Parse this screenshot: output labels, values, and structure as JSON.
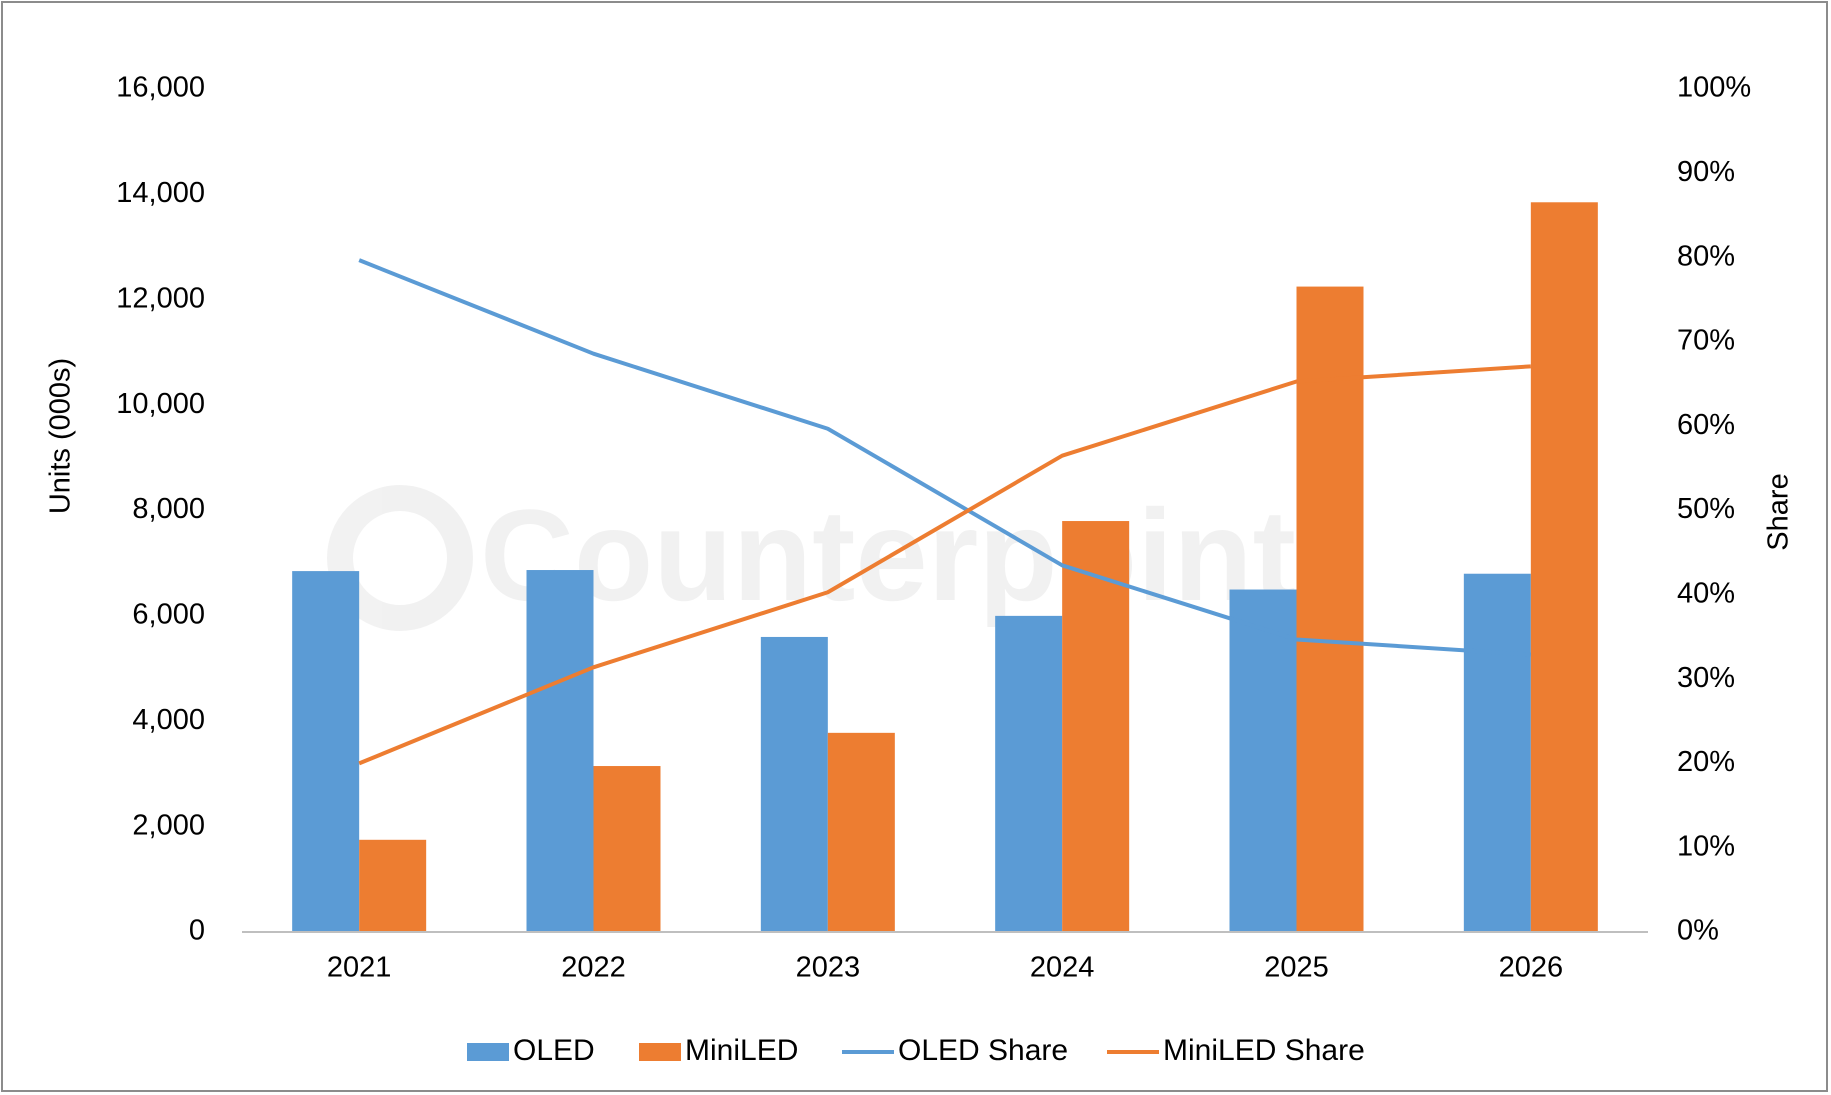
{
  "chart_data": {
    "type": "bar",
    "categories": [
      "2021",
      "2022",
      "2023",
      "2024",
      "2025",
      "2026"
    ],
    "series": [
      {
        "name": "OLED",
        "kind": "bar",
        "axis": "left",
        "color": "#5b9bd5",
        "values": [
          6850,
          6870,
          5600,
          6000,
          6500,
          6800
        ]
      },
      {
        "name": "MiniLED",
        "kind": "bar",
        "axis": "left",
        "color": "#ed7d31",
        "values": [
          1750,
          3150,
          3780,
          7800,
          12250,
          13850
        ]
      },
      {
        "name": "OLED Share",
        "kind": "line",
        "axis": "right",
        "color": "#5b9bd5",
        "values": [
          0.797,
          0.686,
          0.597,
          0.435,
          0.347,
          0.329
        ]
      },
      {
        "name": "MiniLED Share",
        "kind": "line",
        "axis": "right",
        "color": "#ed7d31",
        "values": [
          0.2,
          0.314,
          0.403,
          0.565,
          0.653,
          0.671
        ]
      }
    ],
    "ylabel": "Units (000s)",
    "y2label": "Share",
    "ylim": [
      0,
      16000
    ],
    "y2lim": [
      0,
      1
    ],
    "yticks": [
      "0",
      "2,000",
      "4,000",
      "6,000",
      "8,000",
      "10,000",
      "12,000",
      "14,000",
      "16,000"
    ],
    "y2ticks": [
      "0%",
      "10%",
      "20%",
      "30%",
      "40%",
      "50%",
      "60%",
      "70%",
      "80%",
      "90%",
      "100%"
    ],
    "legend_position": "bottom",
    "grid": false
  },
  "watermark": "Counterpoint"
}
